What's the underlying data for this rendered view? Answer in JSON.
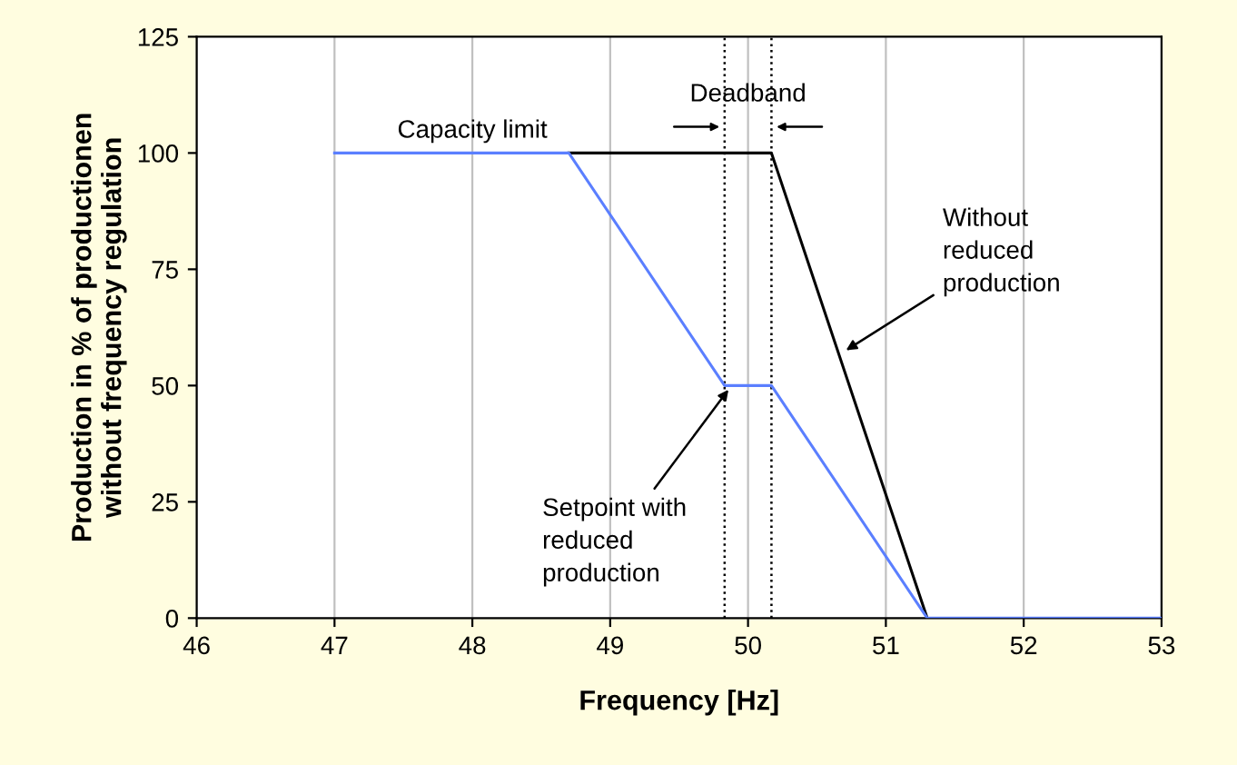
{
  "chart_data": {
    "type": "line",
    "xlabel": "Frequency [Hz]",
    "ylabel": "Production in % of productionen\nwithout frequency regulation",
    "xlim": [
      46,
      53
    ],
    "xticks": [
      46,
      47,
      48,
      49,
      50,
      51,
      52,
      53
    ],
    "ylim": [
      0,
      125
    ],
    "yticks": [
      0,
      25,
      50,
      75,
      100,
      125
    ],
    "grid": "x",
    "legend": false,
    "marker": "none",
    "line_style": "solid",
    "series": [
      {
        "color": "#000000",
        "x": [
          48.7,
          50.17,
          51.3
        ],
        "values": [
          100,
          100,
          0
        ]
      },
      {
        "color": "#5b7fff",
        "x": [
          47,
          48.7,
          49.83,
          50.17,
          51.3,
          53
        ],
        "values": [
          100,
          100,
          50,
          50,
          0,
          0
        ]
      }
    ],
    "ref_lines": [
      {
        "axis": "x",
        "value": 49.83,
        "color": "#000000",
        "line_style": "dotted"
      },
      {
        "axis": "x",
        "value": 50.17,
        "color": "#000000",
        "line_style": "dotted"
      }
    ],
    "annotations": [
      {
        "text": "Capacity limit",
        "x": 48,
        "y": 100
      },
      "Deadband",
      {
        "text": "Without\nreduced\nproduction",
        "x": 50.68,
        "y": 57
      },
      {
        "text": "Setpoint with\nreduced\nproduction",
        "x": 49.88,
        "y": 50
      }
    ]
  }
}
